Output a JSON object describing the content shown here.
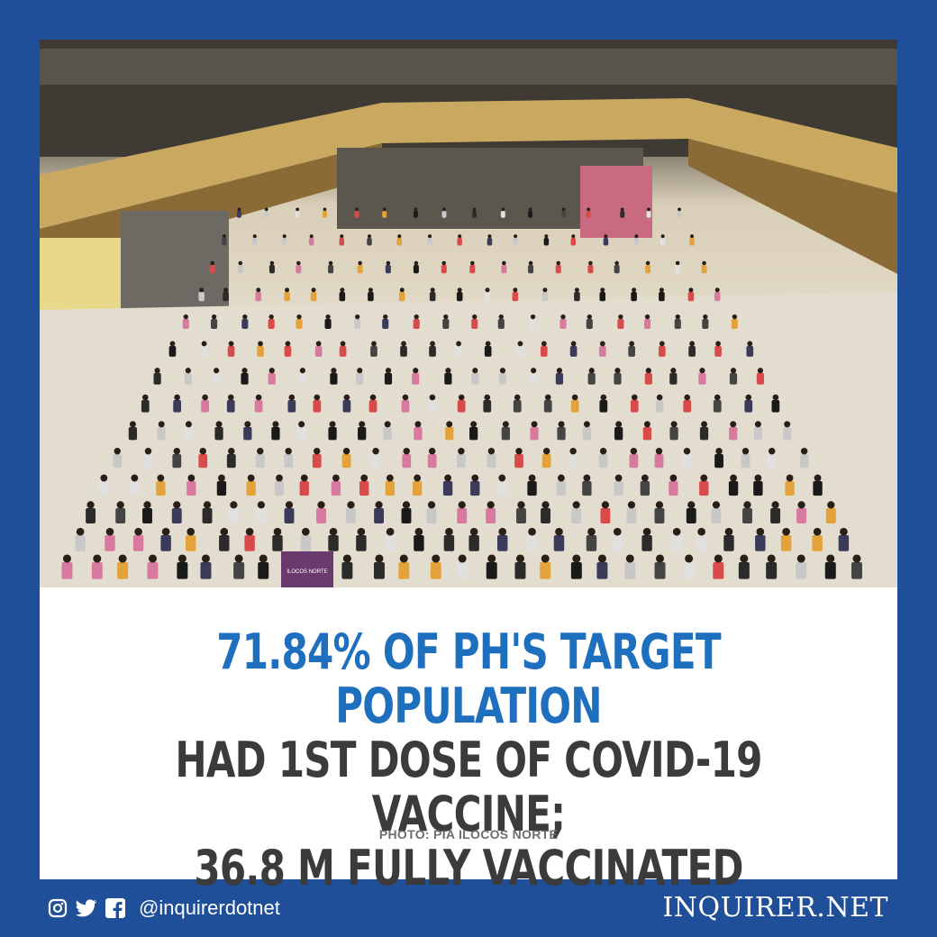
{
  "headline": {
    "line1": "71.84% OF PH'S TARGET POPULATION",
    "line2": "HAD 1ST DOSE OF COVID-19 VACCINE;",
    "line3": "36.8 M FULLY VACCINATED"
  },
  "photo_credit": "PHOTO: PIA ILOCOS NORTE",
  "photo_sign": "ILOCOS NORTE",
  "footer": {
    "social_icons": [
      "instagram-icon",
      "twitter-icon",
      "facebook-icon"
    ],
    "handle": "@inquirerdotnet",
    "brand": "INQUIRER.NET"
  },
  "colors": {
    "frame": "#1f4f99",
    "headline_accent": "#1f6fbf",
    "headline_dark": "#3b3b3b"
  }
}
